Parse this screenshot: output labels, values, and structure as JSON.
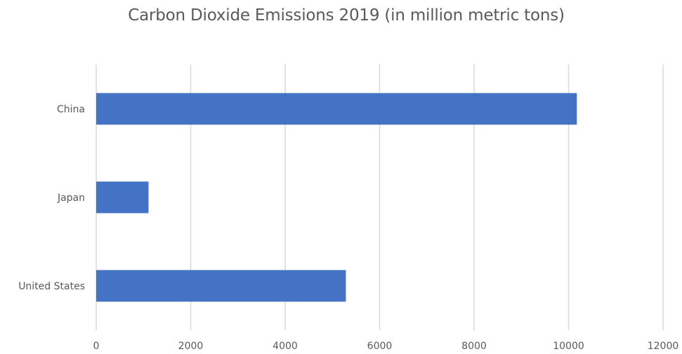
{
  "chart_data": {
    "type": "bar",
    "orientation": "horizontal",
    "title": "Carbon Dioxide Emissions 2019 (in million metric tons)",
    "categories": [
      "China",
      "Japan",
      "United States"
    ],
    "values": [
      10175,
      1107,
      5285
    ],
    "xlim": [
      0,
      12000
    ],
    "x_ticks": [
      "0",
      "2000",
      "4000",
      "6000",
      "8000",
      "10000",
      "12000"
    ],
    "xlabel": "",
    "ylabel": "",
    "grid": "vertical",
    "legend": "none",
    "bar_color": "#4472C4",
    "gridline_color": "#D9D9D9"
  }
}
